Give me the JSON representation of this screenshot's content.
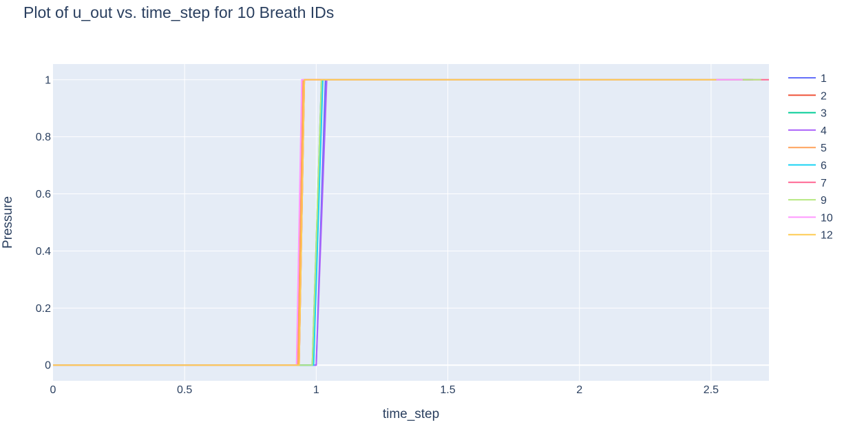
{
  "chart_data": {
    "type": "line",
    "title": "Plot of u_out vs. time_step for 10 Breath IDs",
    "xlabel": "time_step",
    "ylabel": "Pressure",
    "xlim": [
      0,
      2.72
    ],
    "ylim": [
      -0.055,
      1.055
    ],
    "xticks": [
      0,
      0.5,
      1,
      1.5,
      2,
      2.5
    ],
    "xtick_labels": [
      "0",
      "0.5",
      "1",
      "1.5",
      "2",
      "2.5"
    ],
    "yticks": [
      0,
      0.2,
      0.4,
      0.6,
      0.8,
      1
    ],
    "ytick_labels": [
      "0",
      "0.2",
      "0.4",
      "0.6",
      "0.8",
      "1"
    ],
    "grid": true,
    "legend_position": "right",
    "background_color": "#e5ecf6",
    "series": [
      {
        "name": "1",
        "color": "#636efa",
        "x": [
          0,
          1.0,
          1.035,
          2.66
        ],
        "y": [
          0,
          0,
          1,
          1
        ]
      },
      {
        "name": "2",
        "color": "#ef553b",
        "x": [
          0,
          0.935,
          0.955,
          2.65
        ],
        "y": [
          0,
          0,
          1,
          1
        ]
      },
      {
        "name": "3",
        "color": "#00cc96",
        "x": [
          0,
          0.985,
          1.02,
          2.62
        ],
        "y": [
          0,
          0,
          1,
          1
        ]
      },
      {
        "name": "4",
        "color": "#ab63fa",
        "x": [
          0,
          1.0,
          1.04,
          2.66
        ],
        "y": [
          0,
          0,
          1,
          1
        ]
      },
      {
        "name": "5",
        "color": "#ffa15a",
        "x": [
          0,
          0.93,
          0.95,
          2.64
        ],
        "y": [
          0,
          0,
          1,
          1
        ]
      },
      {
        "name": "6",
        "color": "#19d3f3",
        "x": [
          0,
          0.99,
          1.025,
          2.64
        ],
        "y": [
          0,
          0,
          1,
          1
        ]
      },
      {
        "name": "7",
        "color": "#ff6692",
        "x": [
          0,
          0.935,
          0.955,
          2.72
        ],
        "y": [
          0,
          0,
          1,
          1
        ]
      },
      {
        "name": "9",
        "color": "#b6e880",
        "x": [
          0,
          0.985,
          1.02,
          2.69
        ],
        "y": [
          0,
          0,
          1,
          1
        ]
      },
      {
        "name": "10",
        "color": "#ff97ff",
        "x": [
          0,
          0.925,
          0.945,
          2.62
        ],
        "y": [
          0,
          0,
          1,
          1
        ]
      },
      {
        "name": "12",
        "color": "#fecb52",
        "x": [
          0,
          0.935,
          0.955,
          2.52
        ],
        "y": [
          0,
          0,
          1,
          1
        ]
      }
    ]
  }
}
